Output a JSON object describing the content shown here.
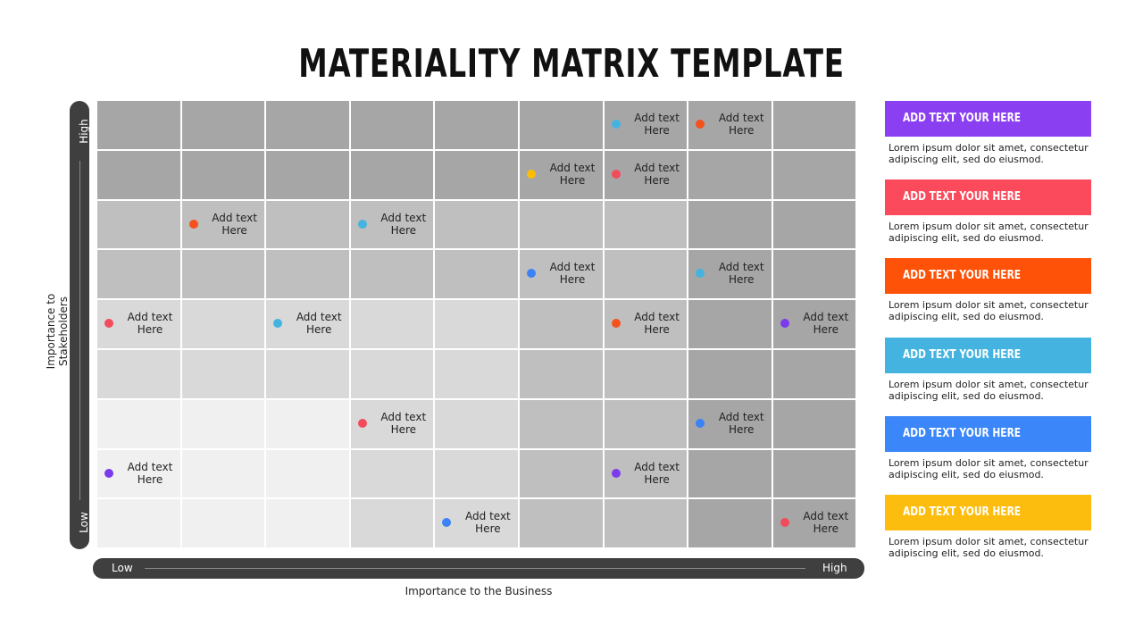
{
  "title": "MATERIALITY MATRIX TEMPLATE",
  "y_axis": {
    "label": "Importance to Stakeholders",
    "high": "High",
    "low": "Low"
  },
  "x_axis": {
    "label": "Importance to the Business",
    "low": "Low",
    "high": "High"
  },
  "items": [
    {
      "label": "Add text Here",
      "color": "#45b3e0"
    },
    {
      "label": "Add text Here",
      "color": "#f4511e"
    },
    {
      "label": "Add text Here",
      "color": "#fbbc05"
    },
    {
      "label": "Add text Here",
      "color": "#f24b5b"
    },
    {
      "label": "Add text Here",
      "color": "#f4511e"
    },
    {
      "label": "Add text Here",
      "color": "#45b3e0"
    },
    {
      "label": "Add text Here",
      "color": "#3b82f6"
    },
    {
      "label": "Add text Here",
      "color": "#45b3e0"
    },
    {
      "label": "Add text Here",
      "color": "#f24b5b"
    },
    {
      "label": "Add text Here",
      "color": "#45b3e0"
    },
    {
      "label": "Add text Here",
      "color": "#f4511e"
    },
    {
      "label": "Add text Here",
      "color": "#7c3aed"
    },
    {
      "label": "Add text Here",
      "color": "#f24b5b"
    },
    {
      "label": "Add text Here",
      "color": "#3b82f6"
    },
    {
      "label": "Add text Here",
      "color": "#7c3aed"
    },
    {
      "label": "Add text Here",
      "color": "#7c3aed"
    },
    {
      "label": "Add text Here",
      "color": "#3b82f6"
    },
    {
      "label": "Add text Here",
      "color": "#f24b5b"
    }
  ],
  "legend": [
    {
      "heading": "ADD TEXT YOUR HERE",
      "color": "#8a3ff0",
      "text": "Lorem ipsum dolor sit amet, consectetur adipiscing elit, sed do eiusmod."
    },
    {
      "heading": "ADD TEXT YOUR HERE",
      "color": "#fb4a5c",
      "text": "Lorem ipsum dolor sit amet, consectetur adipiscing elit, sed do eiusmod."
    },
    {
      "heading": "ADD TEXT YOUR HERE",
      "color": "#fe5208",
      "text": "Lorem ipsum dolor sit amet, consectetur adipiscing elit, sed do eiusmod."
    },
    {
      "heading": "ADD TEXT YOUR HERE",
      "color": "#45b3e0",
      "text": "Lorem ipsum dolor sit amet, consectetur adipiscing elit, sed do eiusmod."
    },
    {
      "heading": "ADD TEXT YOUR HERE",
      "color": "#3b86f8",
      "text": "Lorem ipsum dolor sit amet, consectetur adipiscing elit, sed do eiusmod."
    },
    {
      "heading": "ADD TEXT YOUR HERE",
      "color": "#fdbd0f",
      "text": "Lorem ipsum dolor sit amet, consectetur adipiscing elit, sed do eiusmod."
    }
  ]
}
